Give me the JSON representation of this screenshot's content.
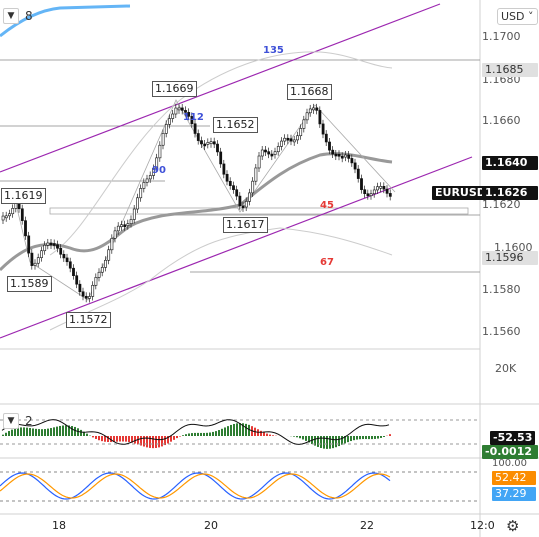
{
  "header": {
    "collapse_icon": "chevron-down-icon",
    "indicator_count": "8"
  },
  "currency_button": {
    "label": "USD",
    "icon": "chevron-down-icon"
  },
  "price_scale": [
    "1.1700",
    "1.1680",
    "1.1660",
    "1.1620",
    "1.1600",
    "1.1580",
    "1.1560"
  ],
  "volume_scale": "20K",
  "badges": {
    "upper_band": "1.1685",
    "ma": "1.1640",
    "symbol": "EURUSD",
    "price": "1.1626",
    "lower_band": "1.1596"
  },
  "price_labels": [
    "1.1669",
    "1.1668",
    "1.1652",
    "1.1619",
    "1.1617",
    "1.1589",
    "1.1572"
  ],
  "fib_labels": [
    "135",
    "112",
    "90",
    "45",
    "67"
  ],
  "oscillator": {
    "collapse_icon": "chevron-down-icon",
    "count": "2",
    "value_a": "-52.53",
    "value_b": "-0.0012",
    "scale_top": "100.00"
  },
  "stochastic": {
    "k_value": "52.42",
    "d_value": "37.29"
  },
  "time_axis": [
    "18",
    "20",
    "22",
    "12:0"
  ],
  "settings_icon": "gear-icon",
  "colors": {
    "up": "#26a69a",
    "down": "#ef5350",
    "channel": "#9c27b0",
    "fib_blue": "#3f51d8",
    "fib_red": "#e53935"
  }
}
